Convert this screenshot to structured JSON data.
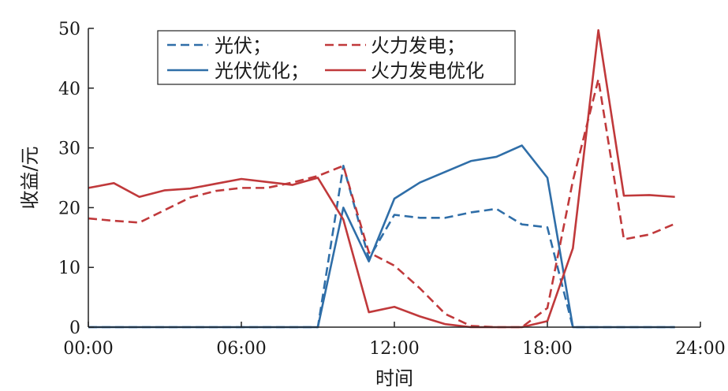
{
  "chart_data": {
    "type": "line",
    "title": "",
    "xlabel": "时间",
    "ylabel": "收益/元",
    "xlim": [
      0,
      24
    ],
    "ylim": [
      0,
      50
    ],
    "grid": false,
    "legend_position": "top-left",
    "x_ticks": [
      {
        "value": 0,
        "label": "00:00"
      },
      {
        "value": 6,
        "label": "06:00"
      },
      {
        "value": 12,
        "label": "12:00"
      },
      {
        "value": 18,
        "label": "18:00"
      },
      {
        "value": 24,
        "label": "24:00"
      }
    ],
    "y_ticks": [
      {
        "value": 0,
        "label": "0"
      },
      {
        "value": 10,
        "label": "10"
      },
      {
        "value": 20,
        "label": "20"
      },
      {
        "value": 30,
        "label": "30"
      },
      {
        "value": 40,
        "label": "40"
      },
      {
        "value": 50,
        "label": "50"
      }
    ],
    "x": [
      0,
      1,
      2,
      3,
      4,
      5,
      6,
      7,
      8,
      9,
      10,
      11,
      12,
      13,
      14,
      15,
      16,
      17,
      18,
      19,
      20,
      21,
      22,
      23
    ],
    "series": [
      {
        "name": "光伏；",
        "color": "#2f6ea8",
        "dash": true,
        "values": [
          0,
          0,
          0,
          0,
          0,
          0,
          0,
          0,
          0,
          0,
          27,
          11.5,
          18.8,
          18.3,
          18.3,
          19.2,
          19.8,
          17.2,
          16.7,
          0,
          0,
          0,
          0,
          0
        ]
      },
      {
        "name": "火力发电；",
        "color": "#c0393b",
        "dash": true,
        "values": [
          18.2,
          17.8,
          17.5,
          19.6,
          21.7,
          22.8,
          23.3,
          23.3,
          24.2,
          25.3,
          27,
          12.5,
          10.3,
          6.5,
          2.2,
          0.2,
          0,
          0,
          3.2,
          24.5,
          41.5,
          14.7,
          15.5,
          17.3
        ]
      },
      {
        "name": "光伏优化；",
        "color": "#2f6ea8",
        "dash": false,
        "values": [
          0,
          0,
          0,
          0,
          0,
          0,
          0,
          0,
          0,
          0,
          20,
          11,
          21.5,
          24.2,
          26,
          27.8,
          28.5,
          30.4,
          25,
          0,
          0,
          0,
          0,
          0
        ]
      },
      {
        "name": "火力发电优化",
        "color": "#c0393b",
        "dash": false,
        "values": [
          23.3,
          24.1,
          21.8,
          22.9,
          23.2,
          24,
          24.8,
          24.3,
          23.8,
          25,
          18,
          2.5,
          3.4,
          1.8,
          0.5,
          0,
          0,
          0,
          1,
          13.2,
          49.7,
          22,
          22.1,
          21.8
        ]
      }
    ]
  }
}
